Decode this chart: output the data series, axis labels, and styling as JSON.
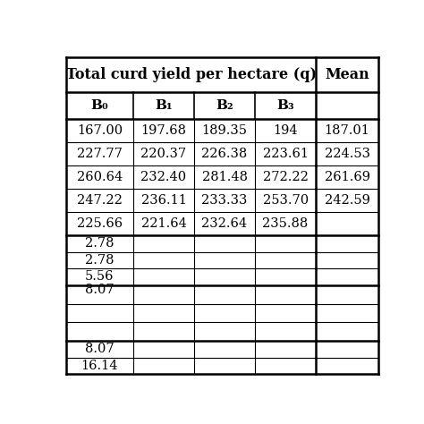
{
  "title": "Total curd yield per hectare (q)",
  "mean_header": "Mean",
  "col_headers": [
    "B₀",
    "B₁",
    "B₂",
    "B₃"
  ],
  "rows": [
    [
      "167.00",
      "197.68",
      "189.35",
      "194",
      "187.01"
    ],
    [
      "227.77",
      "220.37",
      "226.38",
      "223.61",
      "224.53"
    ],
    [
      "260.64",
      "232.40",
      "281.48",
      "272.22",
      "261.69"
    ],
    [
      "247.22",
      "236.11",
      "233.33",
      "253.70",
      "242.59"
    ],
    [
      "225.66",
      "221.64",
      "232.64",
      "235.88",
      ""
    ],
    [
      "2.78",
      "",
      "",
      "",
      ""
    ],
    [
      "2.78",
      "",
      "",
      "",
      ""
    ],
    [
      "5.56",
      "",
      "",
      "",
      ""
    ],
    [
      "8.07",
      "",
      "",
      "",
      ""
    ],
    [
      "",
      "",
      "",
      "",
      ""
    ],
    [
      "",
      "",
      "",
      "",
      ""
    ],
    [
      "8.07",
      "",
      "",
      "",
      ""
    ],
    [
      "16.14",
      "",
      "",
      "",
      ""
    ]
  ],
  "background_color": "#ffffff",
  "text_color": "#000000",
  "line_color": "#000000",
  "figsize": [
    4.74,
    4.74
  ],
  "dpi": 100
}
